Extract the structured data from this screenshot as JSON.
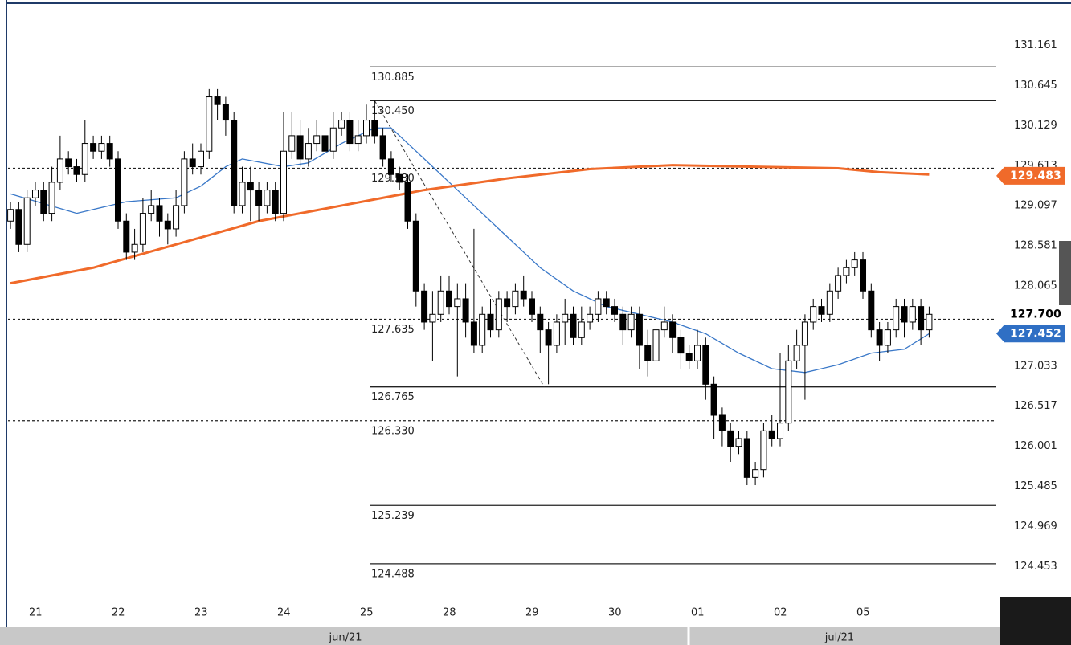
{
  "chart_data": {
    "type": "candlestick",
    "ylim": [
      124.042,
      131.695
    ],
    "yticks": [
      {
        "value": 131.161,
        "label": "131.161"
      },
      {
        "value": 130.645,
        "label": "130.645"
      },
      {
        "value": 130.129,
        "label": "130.129"
      },
      {
        "value": 129.613,
        "label": "129.613"
      },
      {
        "value": 129.097,
        "label": "129.097"
      },
      {
        "value": 128.581,
        "label": "128.581"
      },
      {
        "value": 128.065,
        "label": "128.065"
      },
      {
        "value": 127.033,
        "label": "127.033"
      },
      {
        "value": 126.517,
        "label": "126.517"
      },
      {
        "value": 126.001,
        "label": "126.001"
      },
      {
        "value": 125.485,
        "label": "125.485"
      },
      {
        "value": 124.969,
        "label": "124.969"
      },
      {
        "value": 124.453,
        "label": "124.453"
      }
    ],
    "xlim": [
      -0.3,
      119.6
    ],
    "xticks": [
      {
        "value": 3,
        "label": "21"
      },
      {
        "value": 13,
        "label": "22"
      },
      {
        "value": 23,
        "label": "23"
      },
      {
        "value": 33,
        "label": "24"
      },
      {
        "value": 43,
        "label": "25"
      },
      {
        "value": 53,
        "label": "28"
      },
      {
        "value": 63,
        "label": "29"
      },
      {
        "value": 73,
        "label": "30"
      },
      {
        "value": 83,
        "label": "01"
      },
      {
        "value": 93,
        "label": "02"
      },
      {
        "value": 103,
        "label": "05"
      }
    ],
    "months": [
      "jun/21",
      "jul/21"
    ],
    "open": [
      128.9,
      129.05,
      128.6,
      129.2,
      129.3,
      129.0,
      129.4,
      129.7,
      129.6,
      129.5,
      129.9,
      129.8,
      129.9,
      129.7,
      128.9,
      128.5,
      128.6,
      129.0,
      129.1,
      128.9,
      128.8,
      129.1,
      129.7,
      129.6,
      129.8,
      130.5,
      130.4,
      130.2,
      129.1,
      129.4,
      129.3,
      129.1,
      129.3,
      129.0,
      129.8,
      130.0,
      129.7,
      129.9,
      130.0,
      129.8,
      130.1,
      130.2,
      129.9,
      130.0,
      130.2,
      130.0,
      129.7,
      129.5,
      129.4,
      128.9,
      128.0,
      127.6,
      127.7,
      128.0,
      127.8,
      127.9,
      127.6,
      127.3,
      127.7,
      127.5,
      127.9,
      127.8,
      128.0,
      127.9,
      127.7,
      127.5,
      127.3,
      127.6,
      127.7,
      127.4,
      127.6,
      127.7,
      127.9,
      127.8,
      127.7,
      127.5,
      127.7,
      127.3,
      127.1,
      127.5,
      127.6,
      127.4,
      127.2,
      127.1,
      127.3,
      126.8,
      126.4,
      126.2,
      126.0,
      126.1,
      125.6,
      125.7,
      126.2,
      126.1,
      126.3,
      127.1,
      127.3,
      127.6,
      127.8,
      127.7,
      128.0,
      128.2,
      128.3,
      128.4,
      128.0,
      127.5,
      127.3,
      127.5,
      127.8,
      127.6,
      127.8,
      127.5
    ],
    "high": [
      129.15,
      129.15,
      129.3,
      129.4,
      129.4,
      129.6,
      130.0,
      129.8,
      129.7,
      130.2,
      130.0,
      130.0,
      130.0,
      129.8,
      129.0,
      128.8,
      129.2,
      129.3,
      129.2,
      129.0,
      129.3,
      129.8,
      129.9,
      129.9,
      130.6,
      130.6,
      130.5,
      130.3,
      129.6,
      129.6,
      129.4,
      129.4,
      129.4,
      130.3,
      130.3,
      130.2,
      130.1,
      130.2,
      130.1,
      130.3,
      130.3,
      130.3,
      130.2,
      130.4,
      130.45,
      130.1,
      129.8,
      129.6,
      129.5,
      129.0,
      128.1,
      128.0,
      128.2,
      128.2,
      128.1,
      128.1,
      128.8,
      127.8,
      127.9,
      128.0,
      128.0,
      128.1,
      128.2,
      128.0,
      127.8,
      127.6,
      127.7,
      127.9,
      127.8,
      127.8,
      127.8,
      128.0,
      128.0,
      127.9,
      127.8,
      127.8,
      127.8,
      127.5,
      127.6,
      127.8,
      127.7,
      127.5,
      127.3,
      127.5,
      127.4,
      126.9,
      126.5,
      126.3,
      126.2,
      126.2,
      125.8,
      126.3,
      126.4,
      127.2,
      127.3,
      127.5,
      127.7,
      127.9,
      127.9,
      128.1,
      128.3,
      128.4,
      128.5,
      128.5,
      128.1,
      127.6,
      127.6,
      127.9,
      127.9,
      127.9,
      127.9,
      127.8
    ],
    "low": [
      128.8,
      128.5,
      128.5,
      129.1,
      128.9,
      128.9,
      129.3,
      129.5,
      129.4,
      129.4,
      129.7,
      129.7,
      129.6,
      128.8,
      128.4,
      128.4,
      128.5,
      128.9,
      128.7,
      128.6,
      128.7,
      129.0,
      129.5,
      129.5,
      129.7,
      130.2,
      130.0,
      129.0,
      129.0,
      128.9,
      128.9,
      129.0,
      128.9,
      128.9,
      129.7,
      129.6,
      129.6,
      129.8,
      129.7,
      129.7,
      130.0,
      129.8,
      129.8,
      129.9,
      129.9,
      129.6,
      129.4,
      129.3,
      128.8,
      127.8,
      127.5,
      127.1,
      127.6,
      127.7,
      126.9,
      127.4,
      127.2,
      127.2,
      127.4,
      127.4,
      127.6,
      127.7,
      127.8,
      127.6,
      127.2,
      126.8,
      127.2,
      127.3,
      127.3,
      127.3,
      127.5,
      127.6,
      127.7,
      127.6,
      127.3,
      127.4,
      127.0,
      126.9,
      126.8,
      127.4,
      127.2,
      127.0,
      127.0,
      127.0,
      126.6,
      126.1,
      126.0,
      125.8,
      125.9,
      125.5,
      125.5,
      125.6,
      126.0,
      126.0,
      126.2,
      127.0,
      126.6,
      127.5,
      127.6,
      127.6,
      127.9,
      128.1,
      128.2,
      127.9,
      127.4,
      127.1,
      127.2,
      127.4,
      127.4,
      127.5,
      127.3,
      127.4
    ],
    "close": [
      129.05,
      128.6,
      129.2,
      129.3,
      129.0,
      129.4,
      129.7,
      129.6,
      129.5,
      129.9,
      129.8,
      129.9,
      129.7,
      128.9,
      128.5,
      128.6,
      129.0,
      129.1,
      128.9,
      128.8,
      129.1,
      129.7,
      129.6,
      129.8,
      130.5,
      130.4,
      130.2,
      129.1,
      129.4,
      129.3,
      129.1,
      129.3,
      129.0,
      129.8,
      130.0,
      129.7,
      129.9,
      130.0,
      129.8,
      130.1,
      130.2,
      129.9,
      130.0,
      130.2,
      130.0,
      129.7,
      129.5,
      129.4,
      128.9,
      128.0,
      127.6,
      127.7,
      128.0,
      127.8,
      127.9,
      127.6,
      127.3,
      127.7,
      127.5,
      127.9,
      127.8,
      128.0,
      127.9,
      127.7,
      127.5,
      127.3,
      127.6,
      127.7,
      127.4,
      127.6,
      127.7,
      127.9,
      127.8,
      127.7,
      127.5,
      127.7,
      127.3,
      127.1,
      127.5,
      127.6,
      127.4,
      127.2,
      127.1,
      127.3,
      126.8,
      126.4,
      126.2,
      126.0,
      126.1,
      125.6,
      125.7,
      126.2,
      126.1,
      126.3,
      127.1,
      127.3,
      127.6,
      127.8,
      127.7,
      128.0,
      128.2,
      128.3,
      128.4,
      128.0,
      127.5,
      127.3,
      127.5,
      127.8,
      127.6,
      127.8,
      127.5,
      127.7
    ],
    "lines": [
      {
        "color": "#3a78c8",
        "x": [
          0,
          8,
          14,
          20,
          23,
          26,
          28,
          33,
          36,
          40,
          44,
          46,
          50,
          54,
          60,
          64,
          68,
          72,
          76,
          80,
          84,
          88,
          92,
          96,
          100,
          104,
          108,
          111
        ],
        "values": [
          129.25,
          129.0,
          129.15,
          129.2,
          129.35,
          129.6,
          129.7,
          129.6,
          129.65,
          129.9,
          130.1,
          130.1,
          129.7,
          129.3,
          128.7,
          128.3,
          128.0,
          127.8,
          127.7,
          127.6,
          127.45,
          127.2,
          127.0,
          126.95,
          127.05,
          127.2,
          127.25,
          127.45
        ]
      },
      {
        "color": "#f06a2a",
        "x": [
          0,
          10,
          20,
          30,
          40,
          50,
          60,
          70,
          80,
          90,
          100,
          105,
          111
        ],
        "values": [
          128.1,
          128.3,
          128.6,
          128.9,
          129.1,
          129.3,
          129.45,
          129.57,
          129.62,
          129.6,
          129.58,
          129.53,
          129.5
        ]
      }
    ],
    "levels": [
      {
        "value": 130.885,
        "label": "130.885",
        "dashed": false
      },
      {
        "value": 130.45,
        "label": "130.450",
        "dashed": false
      },
      {
        "value": 129.58,
        "label": "129.580",
        "dashed": true
      },
      {
        "value": 127.635,
        "label": "127.635",
        "dashed": true
      },
      {
        "value": 126.765,
        "label": "126.765",
        "dashed": false
      },
      {
        "value": 126.33,
        "label": "126.330",
        "dashed": true
      },
      {
        "value": 125.239,
        "label": "125.239",
        "dashed": false
      },
      {
        "value": 124.488,
        "label": "124.488",
        "dashed": false
      }
    ],
    "trend_line": {
      "x": [
        44,
        64.5
      ],
      "values": [
        130.45,
        126.765
      ]
    },
    "badges": [
      {
        "value": 129.483,
        "label": "129.483",
        "color": "#f06a2a"
      },
      {
        "value": 127.7,
        "label": "127.700",
        "color": "#ffffff"
      },
      {
        "value": 127.452,
        "label": "127.452",
        "color": "#2f6fc4"
      }
    ]
  }
}
